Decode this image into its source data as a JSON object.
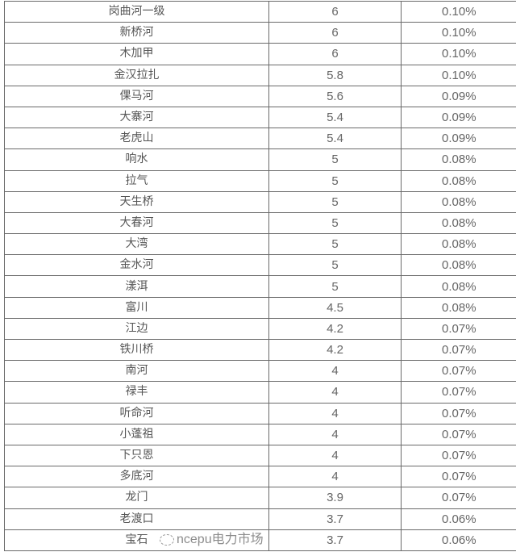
{
  "rows": [
    {
      "name": "岗曲河一级",
      "value": "6",
      "percent": "0.10%"
    },
    {
      "name": "新桥河",
      "value": "6",
      "percent": "0.10%"
    },
    {
      "name": "木加甲",
      "value": "6",
      "percent": "0.10%"
    },
    {
      "name": "金汉拉扎",
      "value": "5.8",
      "percent": "0.10%"
    },
    {
      "name": "倮马河",
      "value": "5.6",
      "percent": "0.09%"
    },
    {
      "name": "大寨河",
      "value": "5.4",
      "percent": "0.09%"
    },
    {
      "name": "老虎山",
      "value": "5.4",
      "percent": "0.09%"
    },
    {
      "name": "响水",
      "value": "5",
      "percent": "0.08%"
    },
    {
      "name": "拉气",
      "value": "5",
      "percent": "0.08%"
    },
    {
      "name": "天生桥",
      "value": "5",
      "percent": "0.08%"
    },
    {
      "name": "大春河",
      "value": "5",
      "percent": "0.08%"
    },
    {
      "name": "大湾",
      "value": "5",
      "percent": "0.08%"
    },
    {
      "name": "金水河",
      "value": "5",
      "percent": "0.08%"
    },
    {
      "name": "漾洱",
      "value": "5",
      "percent": "0.08%"
    },
    {
      "name": "富川",
      "value": "4.5",
      "percent": "0.08%"
    },
    {
      "name": "江边",
      "value": "4.2",
      "percent": "0.07%"
    },
    {
      "name": "铁川桥",
      "value": "4.2",
      "percent": "0.07%"
    },
    {
      "name": "南河",
      "value": "4",
      "percent": "0.07%"
    },
    {
      "name": "禄丰",
      "value": "4",
      "percent": "0.07%"
    },
    {
      "name": "听命河",
      "value": "4",
      "percent": "0.07%"
    },
    {
      "name": "小蓬祖",
      "value": "4",
      "percent": "0.07%"
    },
    {
      "name": "下只恩",
      "value": "4",
      "percent": "0.07%"
    },
    {
      "name": "多底河",
      "value": "4",
      "percent": "0.07%"
    },
    {
      "name": "龙门",
      "value": "3.9",
      "percent": "0.07%"
    },
    {
      "name": "老渡口",
      "value": "3.7",
      "percent": "0.06%"
    },
    {
      "name": "宝石",
      "value": "3.7",
      "percent": "0.06%"
    }
  ],
  "watermark": {
    "text": "ncepu电力市场",
    "icon": "wechat-icon"
  }
}
